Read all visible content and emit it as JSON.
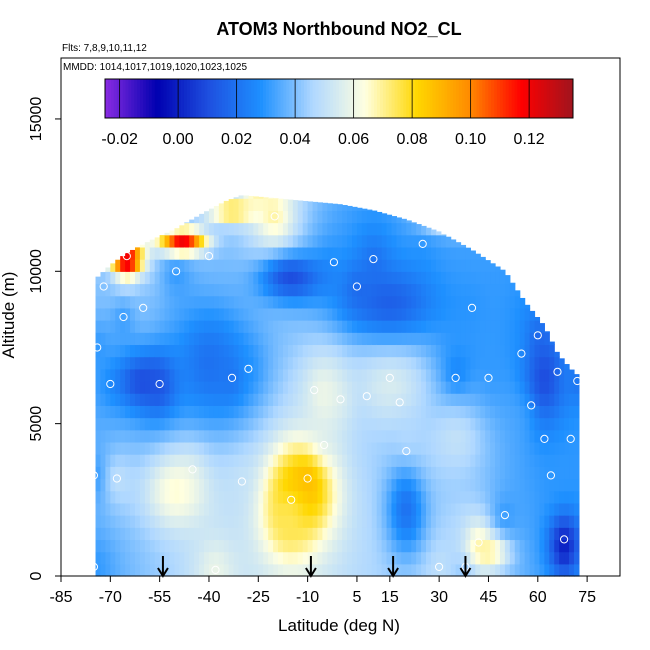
{
  "chart_data": {
    "type": "heatmap",
    "title": "ATOM3 Northbound NO2_CL",
    "flights_label": "Flts: 7,8,9,10,11,12",
    "dates_label": "MMDD: 1014,1017,1019,1020,1023,1025",
    "xlabel": "Latitude (deg N)",
    "ylabel": "Altitude (m)",
    "xlim": [
      -85,
      85
    ],
    "ylim": [
      0,
      17000
    ],
    "x_ticks": [
      -85,
      -70,
      -55,
      -40,
      -25,
      -10,
      5,
      15,
      30,
      45,
      60,
      75
    ],
    "x_tick_labels": [
      "-85",
      "-70",
      "-55",
      "-40",
      "-25",
      "-10",
      "5",
      "15",
      "30",
      "45",
      "60",
      "75"
    ],
    "y_ticks": [
      0,
      5000,
      10000,
      15000
    ],
    "y_tick_labels": [
      "0",
      "5000",
      "10000",
      "15000"
    ],
    "colorbar": {
      "range": [
        -0.025,
        0.135
      ],
      "ticks": [
        -0.02,
        0.0,
        0.02,
        0.04,
        0.06,
        0.08,
        0.1,
        0.12
      ],
      "tick_labels": [
        "-0.02",
        "0.00",
        "0.02",
        "0.04",
        "0.06",
        "0.08",
        "0.10",
        "0.12"
      ],
      "colors": [
        "#8a2be2",
        "#0000b0",
        "#1e50e0",
        "#1e90ff",
        "#b0d8ff",
        "#ffffe0",
        "#ffd700",
        "#ff8c00",
        "#ff0000",
        "#a0141e"
      ]
    },
    "profile_envelope": [
      [
        -74,
        300,
        9800
      ],
      [
        -70,
        300,
        10200
      ],
      [
        -65,
        300,
        10600
      ],
      [
        -58,
        300,
        11000
      ],
      [
        -50,
        300,
        11400
      ],
      [
        -42,
        300,
        11900
      ],
      [
        -35,
        300,
        12300
      ],
      [
        -30,
        300,
        12500
      ],
      [
        -20,
        300,
        12400
      ],
      [
        -10,
        300,
        12300
      ],
      [
        0,
        300,
        12200
      ],
      [
        10,
        300,
        12000
      ],
      [
        20,
        300,
        11700
      ],
      [
        30,
        300,
        11300
      ],
      [
        40,
        300,
        10700
      ],
      [
        50,
        300,
        10000
      ],
      [
        56,
        300,
        9000
      ],
      [
        62,
        300,
        8200
      ],
      [
        66,
        300,
        7300
      ],
      [
        70,
        300,
        6800
      ],
      [
        72,
        300,
        6600
      ]
    ],
    "profile_samples": [
      [
        -75,
        300,
        0.03
      ],
      [
        -75,
        3300,
        0.03
      ],
      [
        -74,
        7500,
        0.03
      ],
      [
        -72,
        9500,
        0.04
      ],
      [
        -70,
        6300,
        0.03
      ],
      [
        -68,
        3200,
        0.05
      ],
      [
        -66,
        8500,
        0.03
      ],
      [
        -65,
        10500,
        0.09
      ],
      [
        -60,
        8800,
        0.04
      ],
      [
        -55,
        6300,
        0.01
      ],
      [
        -50,
        10000,
        0.03
      ],
      [
        -45,
        3500,
        0.05
      ],
      [
        -40,
        10500,
        0.04
      ],
      [
        -38,
        200,
        0.06
      ],
      [
        -33,
        6500,
        0.02
      ],
      [
        -30,
        3100,
        0.05
      ],
      [
        -28,
        6800,
        0.03
      ],
      [
        -20,
        11800,
        0.07
      ],
      [
        -15,
        2500,
        0.08
      ],
      [
        -10,
        3200,
        0.09
      ],
      [
        -8,
        6100,
        0.04
      ],
      [
        -5,
        4300,
        0.05
      ],
      [
        -2,
        10300,
        0.03
      ],
      [
        0,
        5800,
        0.05
      ],
      [
        5,
        9500,
        0.02
      ],
      [
        8,
        5900,
        0.04
      ],
      [
        10,
        10400,
        0.02
      ],
      [
        15,
        6500,
        0.04
      ],
      [
        18,
        5700,
        0.04
      ],
      [
        20,
        4100,
        0.05
      ],
      [
        25,
        10900,
        0.03
      ],
      [
        30,
        300,
        0.05
      ],
      [
        35,
        6500,
        0.02
      ],
      [
        38,
        300,
        0.04
      ],
      [
        40,
        8800,
        0.03
      ],
      [
        42,
        1100,
        0.07
      ],
      [
        45,
        6500,
        0.03
      ],
      [
        50,
        2000,
        0.03
      ],
      [
        55,
        7300,
        0.03
      ],
      [
        58,
        5600,
        0.04
      ],
      [
        60,
        7900,
        0.02
      ],
      [
        62,
        4500,
        0.03
      ],
      [
        64,
        3300,
        0.03
      ],
      [
        66,
        6700,
        0.03
      ],
      [
        68,
        1200,
        0.02
      ],
      [
        70,
        4500,
        0.03
      ],
      [
        72,
        6400,
        0.02
      ]
    ],
    "hotspots": [
      [
        -12,
        2800,
        0.09,
        9,
        1400
      ],
      [
        -16,
        1800,
        0.075,
        7,
        1200
      ],
      [
        -48,
        11000,
        0.12,
        7,
        400
      ],
      [
        -65,
        10400,
        0.13,
        4,
        400
      ],
      [
        -33,
        12000,
        0.08,
        8,
        400
      ],
      [
        -25,
        12500,
        0.07,
        5,
        300
      ],
      [
        35,
        11800,
        0.07,
        10,
        500
      ],
      [
        -50,
        2800,
        0.065,
        10,
        1300
      ],
      [
        45,
        800,
        0.07,
        6,
        500
      ],
      [
        -5,
        6000,
        0.06,
        8,
        1500
      ],
      [
        15,
        6300,
        0.055,
        12,
        1500
      ],
      [
        -60,
        6400,
        0.01,
        8,
        900
      ],
      [
        -40,
        7000,
        0.02,
        10,
        1800
      ],
      [
        15,
        9000,
        0.015,
        14,
        1200
      ],
      [
        -15,
        9800,
        0.01,
        10,
        800
      ],
      [
        62,
        6500,
        0.01,
        6,
        1500
      ],
      [
        68,
        1000,
        0.0,
        4,
        900
      ],
      [
        20,
        2200,
        0.02,
        6,
        1500
      ],
      [
        35,
        4500,
        0.05,
        10,
        1400
      ]
    ],
    "arrow_latitudes": [
      -54,
      -9,
      16,
      38
    ]
  }
}
